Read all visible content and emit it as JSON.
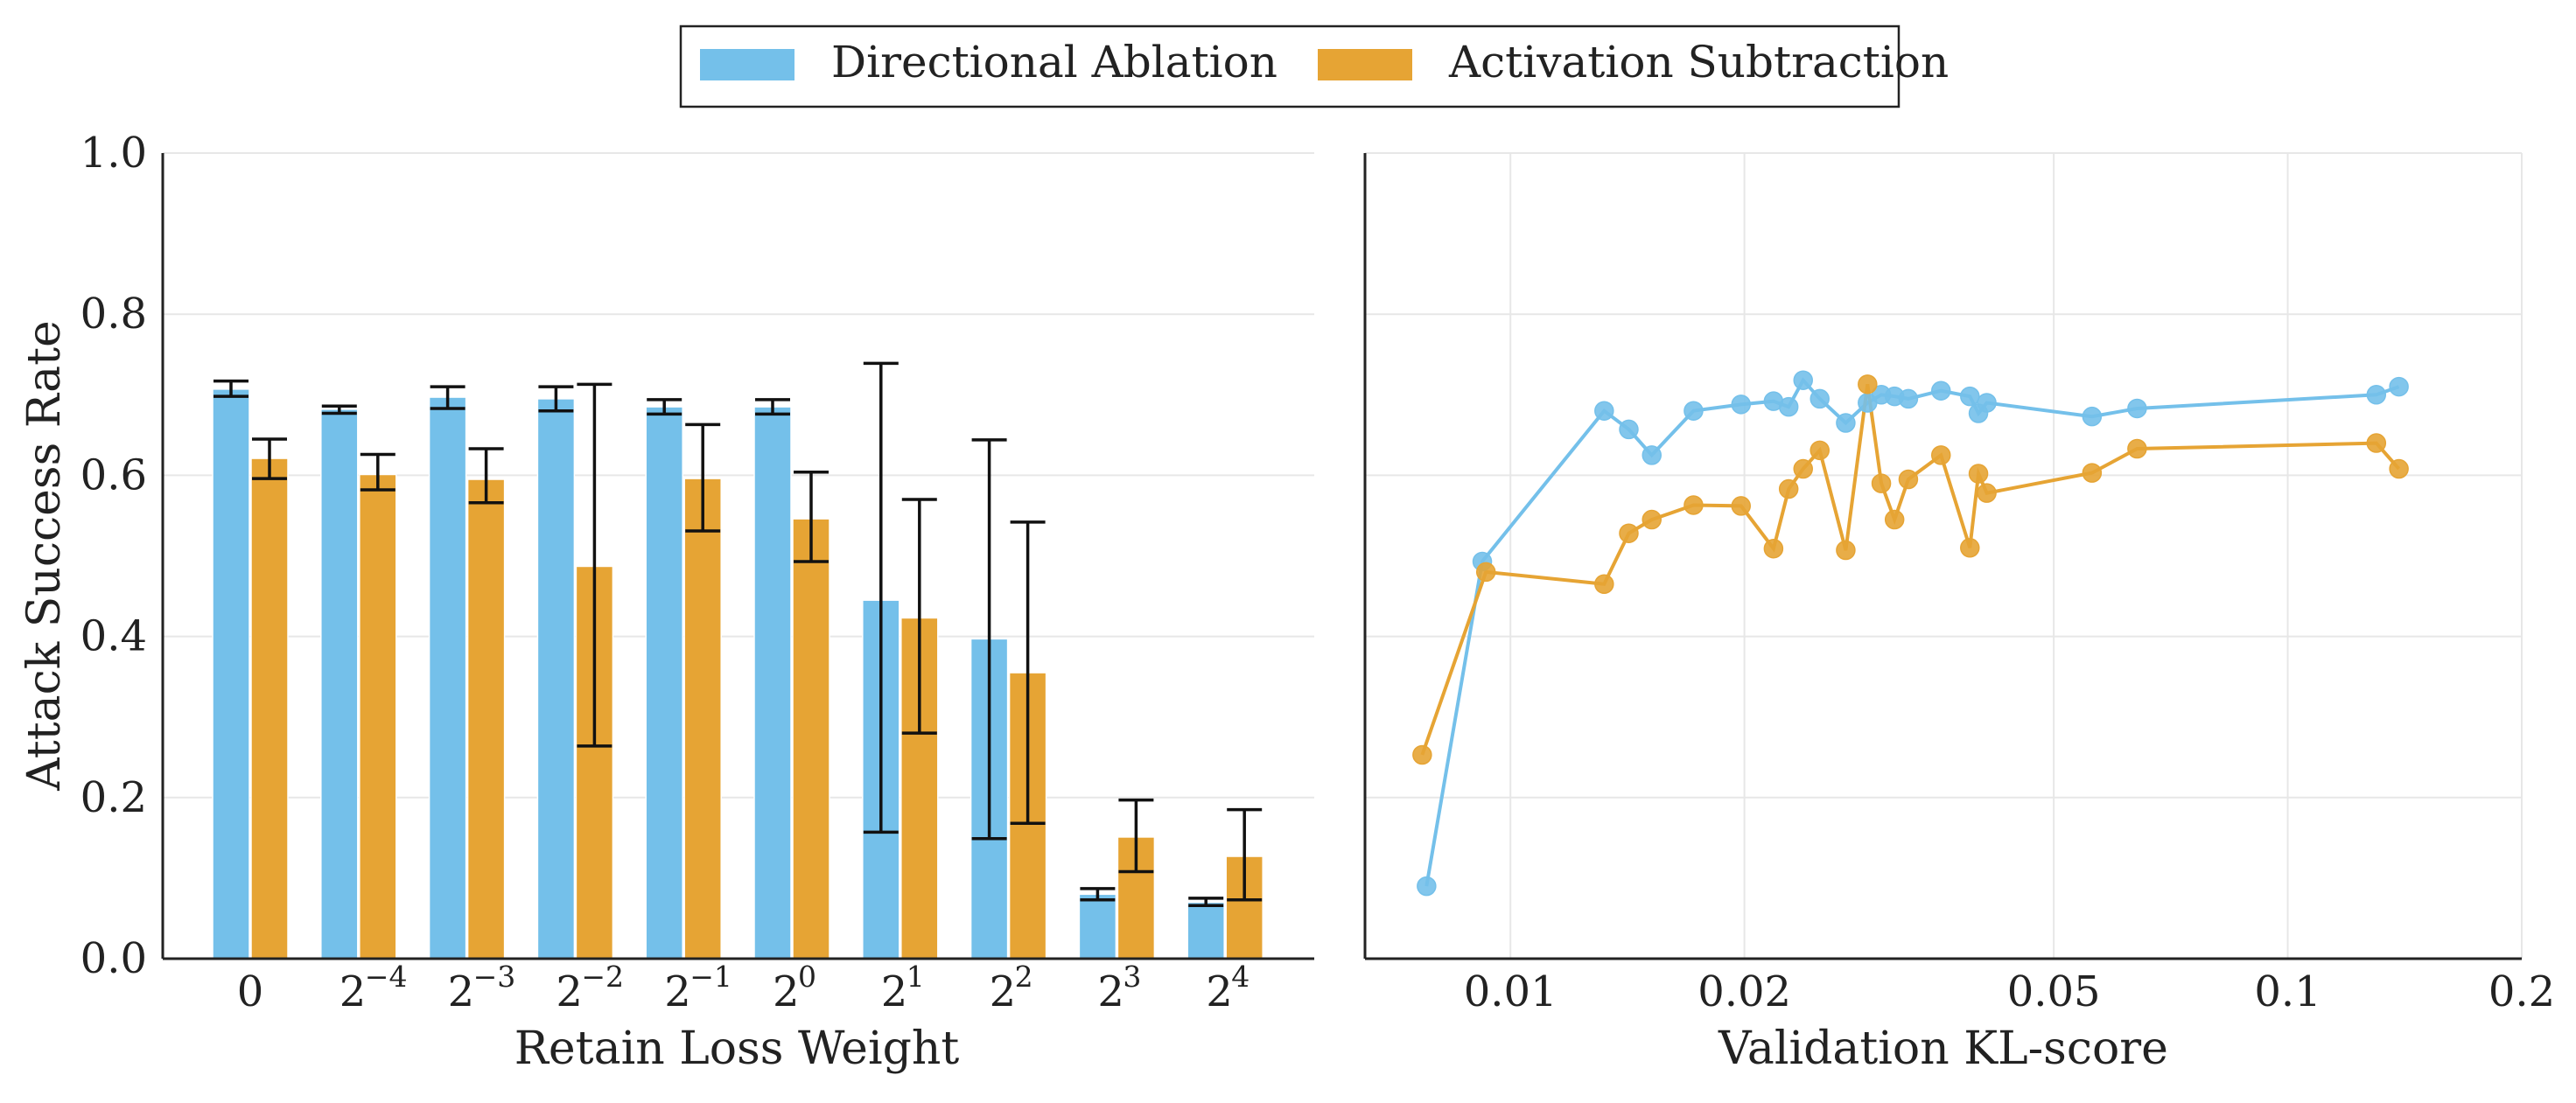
{
  "chart_data": [
    {
      "type": "bar",
      "panel": "left",
      "xlabel": "Retain Loss Weight",
      "ylabel": "Attack Success Rate",
      "ylim": [
        0,
        1.0
      ],
      "yticks": [
        "0.0",
        "0.2",
        "0.4",
        "0.6",
        "0.8",
        "1.0"
      ],
      "yticks_values": [
        0,
        0.2,
        0.4,
        0.6,
        0.8,
        1.0
      ],
      "grid": true,
      "categories": [
        {
          "base": "0",
          "exp": ""
        },
        {
          "base": "2",
          "exp": "−4"
        },
        {
          "base": "2",
          "exp": "−3"
        },
        {
          "base": "2",
          "exp": "−2"
        },
        {
          "base": "2",
          "exp": "−1"
        },
        {
          "base": "2",
          "exp": "0"
        },
        {
          "base": "2",
          "exp": "1"
        },
        {
          "base": "2",
          "exp": "2"
        },
        {
          "base": "2",
          "exp": "3"
        },
        {
          "base": "2",
          "exp": "4"
        }
      ],
      "series": [
        {
          "name": "Directional Ablation",
          "color": "#74C0EA",
          "values": [
            0.707,
            0.682,
            0.697,
            0.695,
            0.685,
            0.685,
            0.445,
            0.397,
            0.08,
            0.07
          ],
          "err_low": [
            0.698,
            0.677,
            0.683,
            0.68,
            0.676,
            0.676,
            0.157,
            0.149,
            0.073,
            0.066
          ],
          "err_high": [
            0.717,
            0.686,
            0.71,
            0.71,
            0.694,
            0.694,
            0.739,
            0.644,
            0.087,
            0.075
          ]
        },
        {
          "name": "Activation Subtraction",
          "color": "#E6A434",
          "values": [
            0.621,
            0.601,
            0.595,
            0.487,
            0.596,
            0.546,
            0.423,
            0.355,
            0.151,
            0.127
          ],
          "err_low": [
            0.596,
            0.582,
            0.566,
            0.264,
            0.531,
            0.493,
            0.28,
            0.168,
            0.108,
            0.073
          ],
          "err_high": [
            0.645,
            0.626,
            0.633,
            0.713,
            0.663,
            0.604,
            0.57,
            0.542,
            0.197,
            0.185
          ]
        }
      ]
    },
    {
      "type": "line",
      "panel": "right",
      "xlabel": "Validation KL-score",
      "xscale": "log",
      "xlim": [
        0.0065,
        0.2
      ],
      "xticks": [
        "0.01",
        "0.02",
        "0.05",
        "0.1",
        "0.2"
      ],
      "xticks_values": [
        0.01,
        0.02,
        0.05,
        0.1,
        0.2
      ],
      "ylim": [
        0,
        1.0
      ],
      "grid": true,
      "series": [
        {
          "name": "Directional Ablation",
          "color": "#74C0EA",
          "x": [
            0.0078,
            0.0092,
            0.0132,
            0.0142,
            0.0152,
            0.0172,
            0.0198,
            0.0218,
            0.0228,
            0.0238,
            0.025,
            0.027,
            0.0288,
            0.03,
            0.0312,
            0.0325,
            0.0358,
            0.039,
            0.04,
            0.041,
            0.056,
            0.064,
            0.13,
            0.139
          ],
          "y": [
            0.09,
            0.493,
            0.68,
            0.657,
            0.625,
            0.68,
            0.688,
            0.692,
            0.685,
            0.718,
            0.695,
            0.665,
            0.69,
            0.7,
            0.698,
            0.695,
            0.705,
            0.698,
            0.677,
            0.69,
            0.673,
            0.683,
            0.7,
            0.71
          ]
        },
        {
          "name": "Activation Subtraction",
          "color": "#E6A434",
          "x": [
            0.0077,
            0.0093,
            0.0132,
            0.0142,
            0.0152,
            0.0172,
            0.0198,
            0.0218,
            0.0228,
            0.0238,
            0.025,
            0.027,
            0.0288,
            0.03,
            0.0312,
            0.0325,
            0.0358,
            0.039,
            0.04,
            0.041,
            0.056,
            0.064,
            0.13,
            0.139
          ],
          "y": [
            0.253,
            0.48,
            0.465,
            0.528,
            0.545,
            0.563,
            0.562,
            0.509,
            0.583,
            0.608,
            0.631,
            0.507,
            0.713,
            0.59,
            0.545,
            0.595,
            0.625,
            0.51,
            0.602,
            0.578,
            0.603,
            0.633,
            0.64,
            0.608
          ]
        }
      ]
    }
  ],
  "legend": {
    "position": "top-center",
    "items": [
      {
        "label": "Directional Ablation",
        "color": "#74C0EA"
      },
      {
        "label": "Activation Subtraction",
        "color": "#E6A434"
      }
    ]
  }
}
